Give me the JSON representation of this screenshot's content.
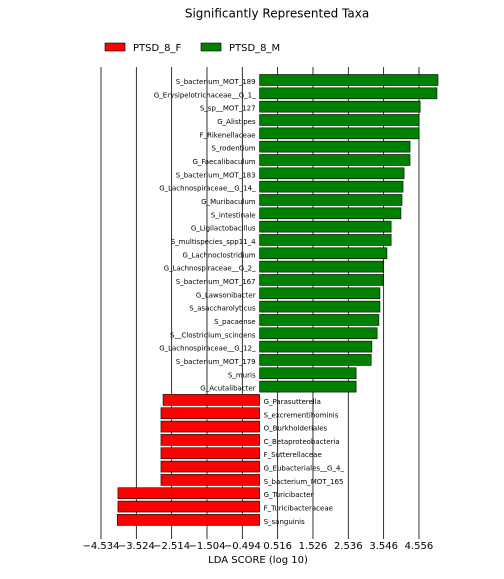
{
  "chart_data": {
    "type": "bar",
    "orientation": "horizontal",
    "title": "Significantly Represented Taxa",
    "x_label": "LDA SCORE (log 10)",
    "categories": [
      "S_bacterium_MOT_189",
      "G_Erysipelotrichaceae__G_1_",
      "S_sp__MOT_127",
      "G_Alistipes",
      "F_Rikenellaceae",
      "S_rodentium",
      "G_Faecalibaculum",
      "S_bacterium_MOT_183",
      "G_Lachnospiraceae__G_14_",
      "G_Muribaculum",
      "S_intestinale",
      "G_Ligilactobacillus",
      "S_multispecies_spp11_4",
      "G_Lachnoclostridium",
      "G_Lachnospiraceae__G_2_",
      "S_bacterium_MOT_167",
      "G_Lawsonibacter",
      "S_asaccharolyticus",
      "S_pacaense",
      "S__Clostridium_scindens",
      "G_Lachnospiraceae__G_12_",
      "S_bacterium_MOT_179",
      "S_muris",
      "G_Acutalibacter",
      "G_Parasutterella",
      "S_excrementihominis",
      "O_Burkholderiales",
      "C_Betaproteobacteria",
      "F_Sutterellaceae",
      "G_Eubacteriales__G_4_",
      "S_bacterium_MOT_165",
      "G_Turicibacter",
      "F_Turicibacteraceae",
      "S_sanguinis"
    ],
    "series": [
      {
        "name": "PTSD_8_F",
        "color": "#ff0000",
        "values": [
          null,
          null,
          null,
          null,
          null,
          null,
          null,
          null,
          null,
          null,
          null,
          null,
          null,
          null,
          null,
          null,
          null,
          null,
          null,
          null,
          null,
          null,
          null,
          null,
          -2.76,
          -2.82,
          -2.82,
          -2.82,
          -2.82,
          -2.82,
          -2.82,
          -4.05,
          -4.05,
          -4.07
        ]
      },
      {
        "name": "PTSD_8_M",
        "color": "#008000",
        "values": [
          5.1,
          5.07,
          4.59,
          4.56,
          4.56,
          4.3,
          4.3,
          4.13,
          4.1,
          4.07,
          4.04,
          3.76,
          3.76,
          3.64,
          3.53,
          3.53,
          3.44,
          3.44,
          3.41,
          3.36,
          3.21,
          3.19,
          2.76,
          2.76,
          null,
          null,
          null,
          null,
          null,
          null,
          null,
          null,
          null,
          null
        ]
      }
    ],
    "xlim": [
      -4.534,
      5.3
    ],
    "xticks": [
      {
        "value": -4.534,
        "label": "−4.534"
      },
      {
        "value": -3.524,
        "label": "−3.524"
      },
      {
        "value": -2.514,
        "label": "−2.514"
      },
      {
        "value": -1.504,
        "label": "−1.504"
      },
      {
        "value": -0.494,
        "label": "−0.494"
      },
      0.516,
      1.526,
      2.536,
      3.546,
      4.556
    ],
    "grid": true,
    "legend": "top"
  }
}
